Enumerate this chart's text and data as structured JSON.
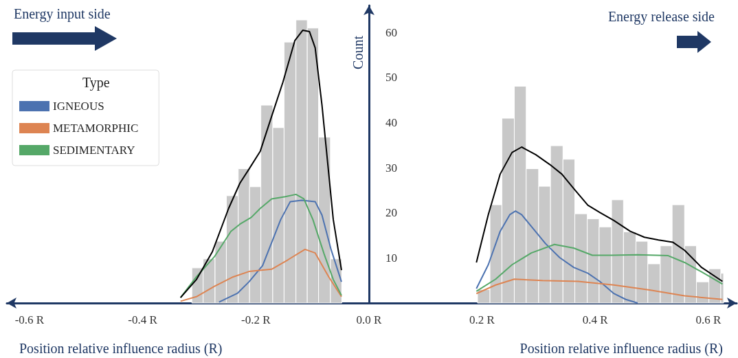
{
  "chart_data": {
    "type": "histogram",
    "xlabel": "Position relative influence radius (R)",
    "ylabel": "Count",
    "legend_title": "Type",
    "annotations": [
      "Energy input side",
      "Energy release side",
      "Position relative influence radius (R)"
    ],
    "bins": [
      -0.313,
      -0.293,
      -0.272,
      -0.252,
      -0.231,
      -0.211,
      -0.191,
      -0.17,
      -0.15,
      -0.129,
      -0.109,
      -0.089,
      -0.068,
      -0.048,
      0.192,
      0.214,
      0.235,
      0.257,
      0.278,
      0.3,
      0.321,
      0.343,
      0.364,
      0.386,
      0.407,
      0.429,
      0.45,
      0.472,
      0.493,
      0.515,
      0.536,
      0.558,
      0.579,
      0.601,
      0.622,
      0.627
    ],
    "values": [
      7.8,
      9.8,
      13.7,
      23.8,
      29.8,
      25.8,
      43.9,
      38.9,
      57.9,
      62.8,
      61,
      36.8,
      9.8,
      0,
      3,
      21.8,
      41,
      48.1,
      29.8,
      25.9,
      34.9,
      31.9,
      19.8,
      18.7,
      16.9,
      22.9,
      15.8,
      13.7,
      8.7,
      12.7,
      21.8,
      12.7,
      4.7,
      7.6,
      6.6
    ],
    "color": "#c8c8c8",
    "series": [
      {
        "type": "line",
        "color": "#000000",
        "x": [
          -0.333,
          -0.305,
          -0.277,
          -0.248,
          -0.228,
          -0.212,
          -0.192,
          -0.172,
          -0.152,
          -0.131,
          -0.117,
          -0.105,
          -0.095,
          -0.083,
          -0.063,
          -0.0485,
          0,
          0.19,
          0.211,
          0.232,
          0.253,
          0.27,
          0.295,
          0.32,
          0.341,
          0.362,
          0.387,
          0.408,
          0.433,
          0.462,
          0.487,
          0.512,
          0.537,
          0.558,
          0.588,
          0.625
        ],
        "values": [
          1.2,
          5.2,
          11.3,
          21,
          26.6,
          29.7,
          33.7,
          41.4,
          49,
          58.2,
          60.5,
          60.2,
          56.6,
          43.9,
          18.5,
          7.3,
          null,
          9.0,
          19.6,
          28.6,
          33.4,
          34.6,
          32.9,
          30.7,
          28.6,
          25.4,
          21.7,
          20.1,
          18.3,
          15.9,
          14.6,
          14.0,
          13.5,
          11.7,
          7.9,
          4.8
        ]
      },
      {
        "type": "line",
        "name": "IGNEOUS",
        "color": "#4c72b0",
        "x": [
          -0.265,
          -0.232,
          -0.212,
          -0.188,
          -0.172,
          -0.156,
          -0.139,
          -0.119,
          -0.095,
          -0.083,
          -0.067,
          -0.0485,
          0,
          0.19,
          0.211,
          0.232,
          0.249,
          0.259,
          0.27,
          0.287,
          0.312,
          0.337,
          0.362,
          0.387,
          0.408,
          0.433,
          0.454,
          0.475
        ],
        "values": [
          0.2,
          2.2,
          4.7,
          8.3,
          13.4,
          18.5,
          22.5,
          22.8,
          22.5,
          19.5,
          11.9,
          4.7,
          null,
          3.2,
          8.5,
          15.9,
          19.6,
          20.4,
          19.6,
          17.0,
          13.2,
          10.1,
          7.9,
          6.6,
          4.8,
          2.1,
          0.8,
          0
        ]
      },
      {
        "type": "line",
        "name": "METAMORPHIC",
        "color": "#dd8452",
        "x": [
          -0.333,
          -0.305,
          -0.273,
          -0.24,
          -0.212,
          -0.172,
          -0.143,
          -0.113,
          -0.095,
          -0.071,
          -0.0485,
          0,
          0.19,
          0.224,
          0.257,
          0.307,
          0.37,
          0.433,
          0.496,
          0.558,
          0.625
        ],
        "values": [
          0.4,
          1.4,
          3.7,
          5.8,
          7,
          7.5,
          9.6,
          11.9,
          11.1,
          5.8,
          1.4,
          null,
          2.1,
          4.0,
          5.3,
          5.0,
          4.8,
          4.0,
          2.9,
          1.6,
          0.8
        ]
      },
      {
        "type": "line",
        "name": "SEDIMENTARY",
        "color": "#55a868",
        "x": [
          -0.333,
          -0.305,
          -0.273,
          -0.244,
          -0.228,
          -0.208,
          -0.192,
          -0.172,
          -0.148,
          -0.129,
          -0.115,
          -0.099,
          -0.079,
          -0.063,
          -0.0485,
          0,
          0.19,
          0.224,
          0.253,
          0.287,
          0.328,
          0.362,
          0.395,
          0.429,
          0.475,
          0.529,
          0.558,
          0.588,
          0.625
        ],
        "values": [
          1.2,
          5.8,
          10.3,
          15.9,
          17.5,
          19,
          21,
          23.1,
          23.6,
          24.1,
          23.1,
          18.5,
          10.8,
          5.2,
          1.7,
          null,
          2.6,
          5.3,
          8.5,
          11.1,
          13.0,
          12.2,
          10.6,
          10.6,
          10.7,
          10.5,
          9.0,
          6.9,
          4.2
        ]
      }
    ],
    "xlim": [
      -0.64,
      0.65
    ],
    "xticks": [
      {
        "value": -0.6,
        "label": "-0.6 R"
      },
      {
        "value": -0.4,
        "label": "-0.4 R"
      },
      {
        "value": -0.2,
        "label": "-0.2 R"
      },
      {
        "value": 0,
        "label": "0.0 R"
      },
      {
        "value": 0.2,
        "label": "0.2 R"
      },
      {
        "value": 0.4,
        "label": "0.4 R"
      },
      {
        "value": 0.6,
        "label": "0.6 R"
      }
    ],
    "ylim": [
      0,
      66
    ],
    "yticks": [
      10,
      20,
      30,
      40,
      50,
      60
    ],
    "legend": "top left",
    "grid": false,
    "marker": "none"
  }
}
